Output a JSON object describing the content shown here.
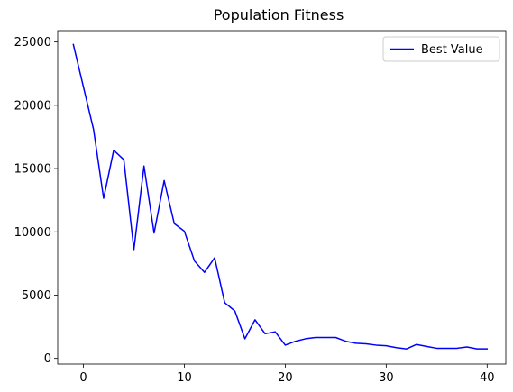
{
  "chart_data": {
    "type": "line",
    "title": "Population Fitness",
    "xlabel": "",
    "ylabel": "",
    "xlim": [
      -2.55,
      41.85
    ],
    "ylim": [
      -450,
      25900
    ],
    "xticks": [
      0,
      10,
      20,
      30,
      40
    ],
    "yticks": [
      0,
      5000,
      10000,
      15000,
      20000,
      25000
    ],
    "grid": false,
    "legend_position": "top-right",
    "series": [
      {
        "name": "Best Value",
        "color": "#0000ff",
        "x": [
          -1,
          1,
          2,
          3,
          4,
          5,
          6,
          7,
          8,
          9,
          10,
          11,
          12,
          13,
          14,
          15,
          16,
          17,
          18,
          19,
          20,
          21,
          22,
          23,
          24,
          25,
          26,
          27,
          28,
          29,
          30,
          31,
          32,
          33,
          34,
          35,
          36,
          37,
          38,
          39,
          40
        ],
        "y": [
          24800,
          18100,
          12650,
          16450,
          15700,
          8600,
          15200,
          9900,
          14050,
          10650,
          10050,
          7700,
          6800,
          7950,
          4400,
          3750,
          1550,
          3050,
          1950,
          2100,
          1050,
          1350,
          1550,
          1650,
          1650,
          1650,
          1350,
          1200,
          1150,
          1050,
          1000,
          850,
          750,
          1100,
          950,
          800,
          800,
          800,
          900,
          750,
          750
        ]
      }
    ]
  }
}
